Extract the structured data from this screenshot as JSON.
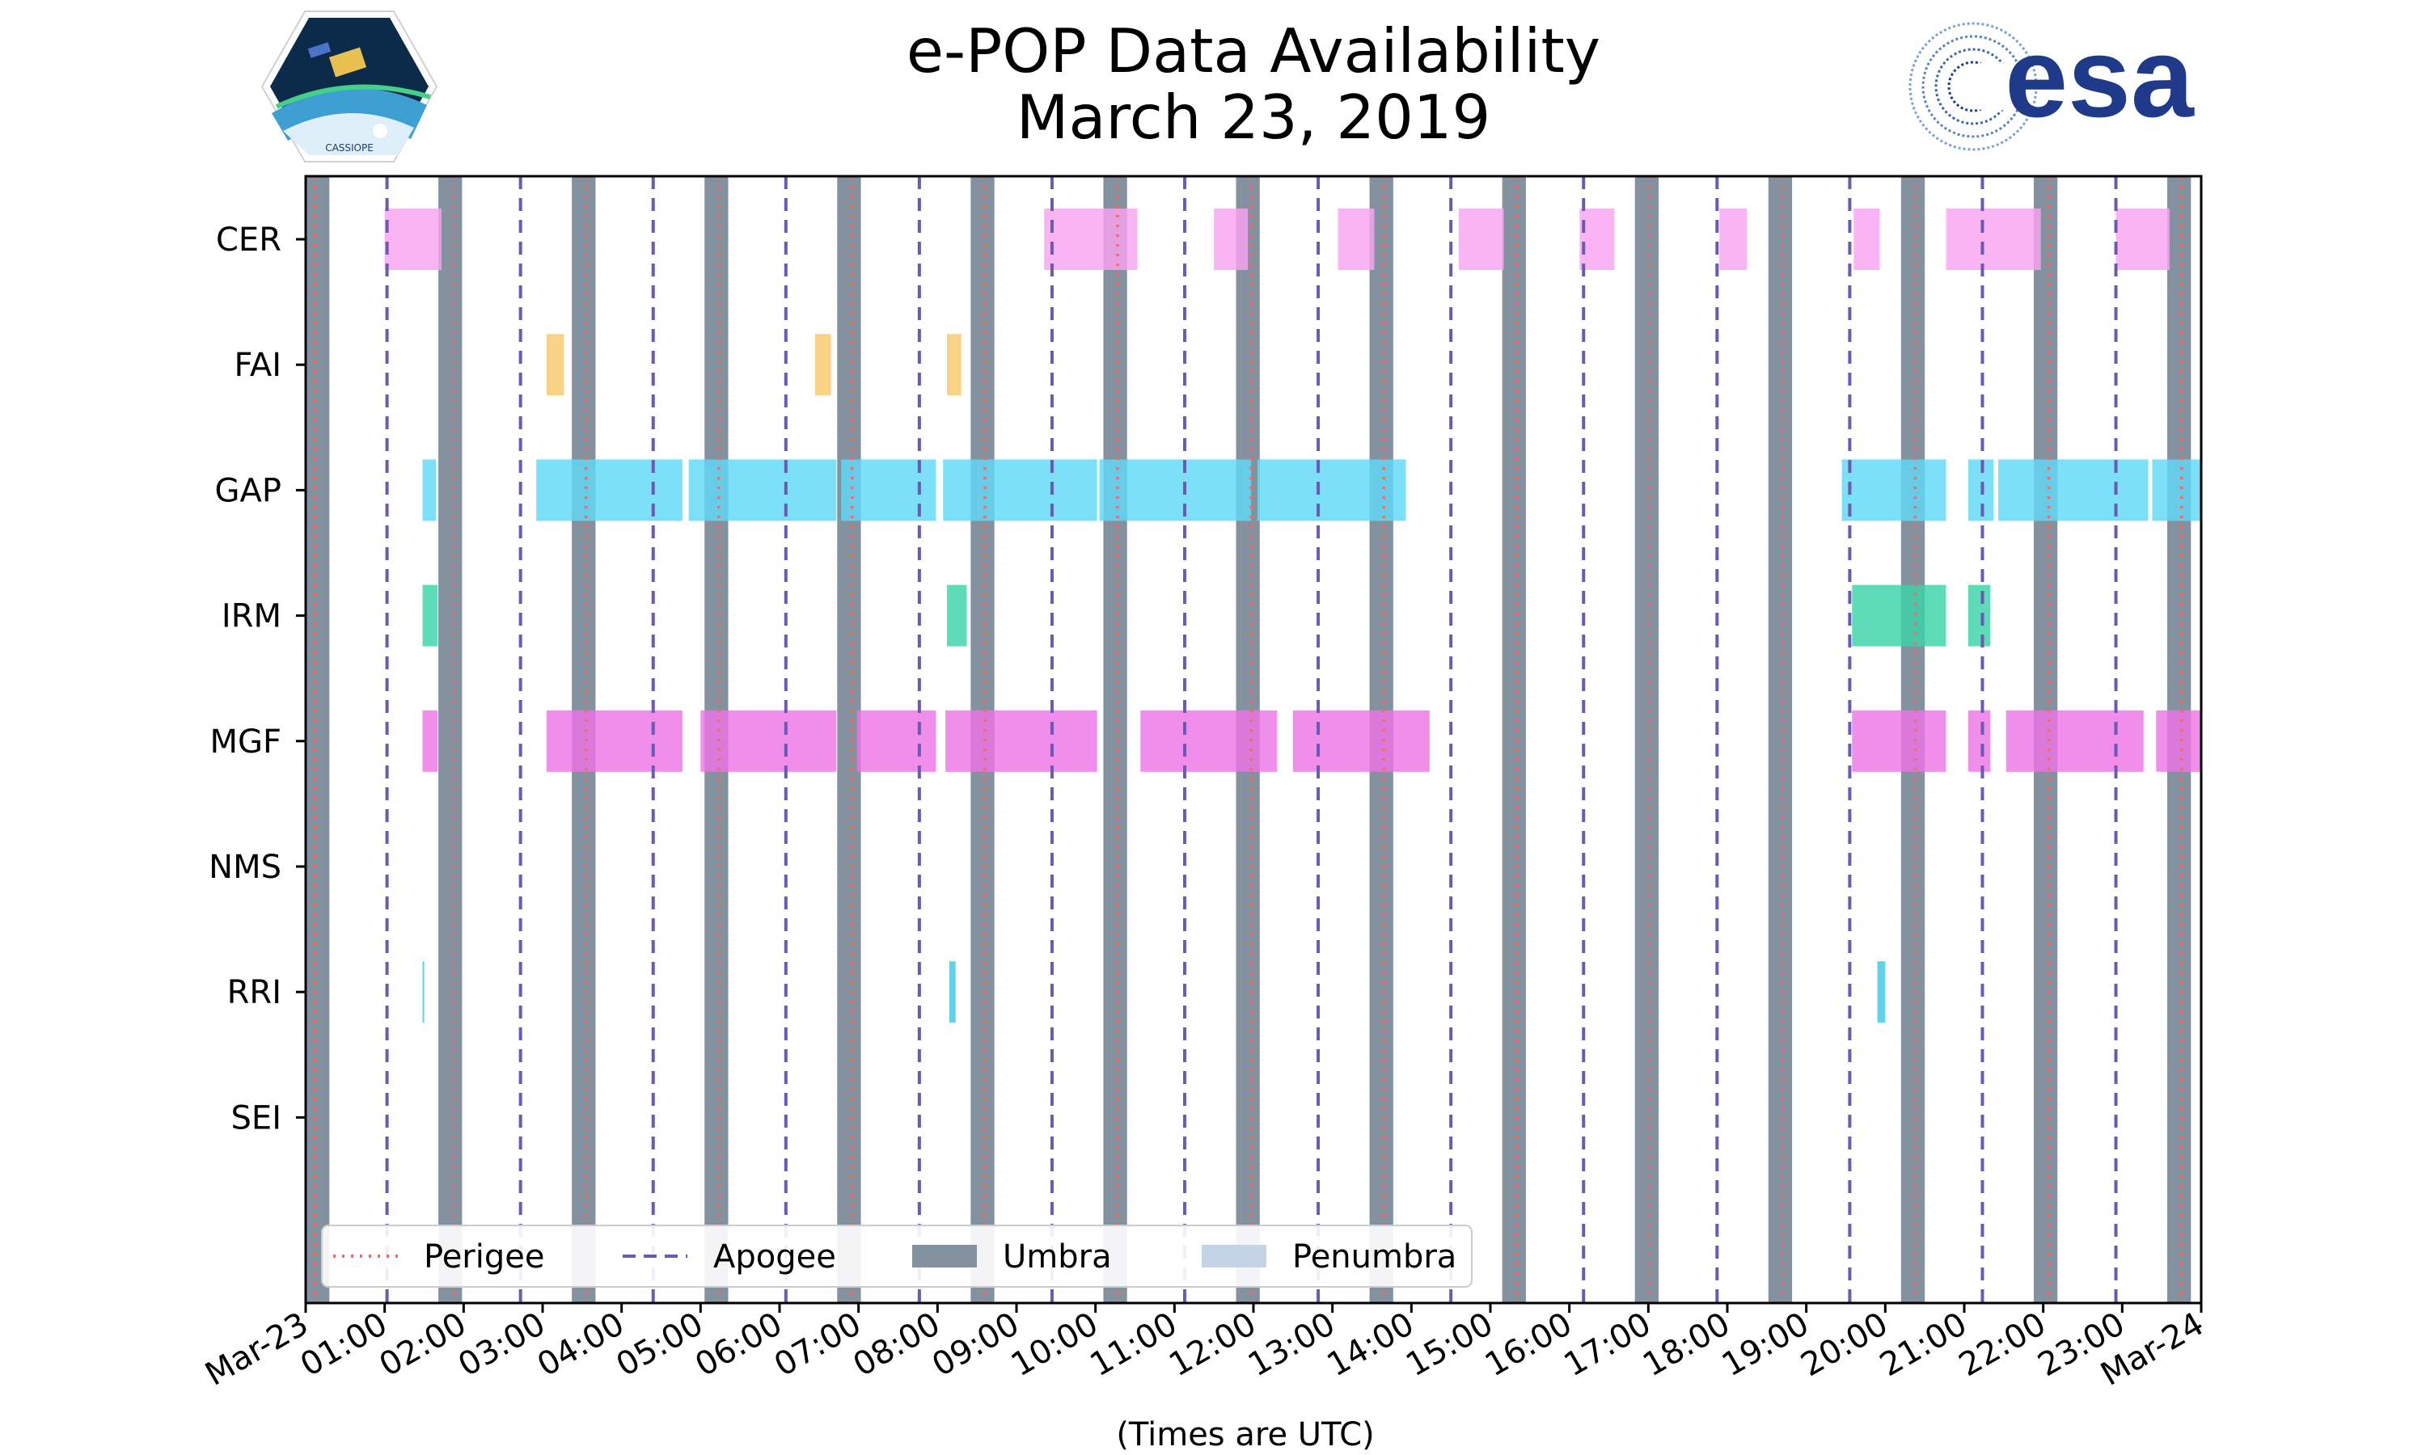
{
  "header": {
    "title_line1": "e-POP Data Availability",
    "title_line2": "March 23, 2019",
    "left_logo_text": "CASSIOPE",
    "right_logo_text": "esa"
  },
  "colors": {
    "CER": "#f9a3f0",
    "FAI": "#f8c96a",
    "GAP": "#5fd9f7",
    "IRM": "#3ad4a8",
    "MGF": "#ee74e6",
    "RRI": "#40c8e6",
    "perigee": "#f06a6a",
    "apogee": "#6a5ab4",
    "umbra": "#8492a0",
    "penumbra": "#c4d3e6"
  },
  "chart_data": {
    "type": "timeline",
    "xlabel": "(Times are UTC)",
    "xlim": [
      0,
      24
    ],
    "x_ticks": [
      "Mar-23",
      "01:00",
      "02:00",
      "03:00",
      "04:00",
      "05:00",
      "06:00",
      "07:00",
      "08:00",
      "09:00",
      "10:00",
      "11:00",
      "12:00",
      "13:00",
      "14:00",
      "15:00",
      "16:00",
      "17:00",
      "18:00",
      "19:00",
      "20:00",
      "21:00",
      "22:00",
      "23:00",
      "Mar-24"
    ],
    "instruments": [
      "CER",
      "FAI",
      "GAP",
      "IRM",
      "MGF",
      "NMS",
      "RRI",
      "SEI"
    ],
    "perigee_hours": [
      0.12,
      1.87,
      3.55,
      5.23,
      6.92,
      8.6,
      10.28,
      11.97,
      13.65,
      15.33,
      17.02,
      18.7,
      20.38,
      22.07,
      23.75
    ],
    "apogee_hours": [
      1.03,
      2.72,
      4.4,
      6.08,
      7.77,
      9.45,
      11.13,
      12.82,
      14.5,
      16.18,
      17.87,
      19.55,
      21.23,
      22.92
    ],
    "umbra_intervals": [
      [
        0.0,
        0.3
      ],
      [
        1.68,
        1.98
      ],
      [
        3.37,
        3.67
      ],
      [
        5.05,
        5.35
      ],
      [
        6.73,
        7.03
      ],
      [
        8.42,
        8.72
      ],
      [
        10.1,
        10.4
      ],
      [
        11.78,
        12.08
      ],
      [
        13.47,
        13.77
      ],
      [
        15.15,
        15.45
      ],
      [
        16.83,
        17.13
      ],
      [
        18.52,
        18.82
      ],
      [
        20.2,
        20.5
      ],
      [
        21.88,
        22.18
      ],
      [
        23.57,
        23.87
      ]
    ],
    "availability": {
      "CER": [
        [
          1.0,
          1.72
        ],
        [
          9.35,
          10.53
        ],
        [
          11.5,
          11.93
        ],
        [
          13.07,
          13.53
        ],
        [
          14.6,
          15.17
        ],
        [
          16.13,
          16.57
        ],
        [
          17.9,
          18.25
        ],
        [
          19.6,
          19.93
        ],
        [
          20.77,
          21.97
        ],
        [
          22.92,
          23.6
        ]
      ],
      "FAI": [
        [
          3.05,
          3.27
        ],
        [
          6.45,
          6.65
        ],
        [
          8.12,
          8.3
        ]
      ],
      "GAP": [
        [
          1.48,
          1.65
        ],
        [
          2.92,
          4.77
        ],
        [
          4.85,
          6.72
        ],
        [
          6.78,
          7.98
        ],
        [
          8.07,
          10.02
        ],
        [
          10.05,
          11.97
        ],
        [
          12.05,
          13.93
        ],
        [
          19.45,
          20.77
        ],
        [
          21.05,
          21.37
        ],
        [
          21.43,
          23.33
        ],
        [
          23.38,
          24.0
        ]
      ],
      "IRM": [
        [
          1.48,
          1.67
        ],
        [
          8.12,
          8.37
        ],
        [
          19.58,
          20.77
        ],
        [
          21.05,
          21.33
        ]
      ],
      "MGF": [
        [
          1.48,
          1.67
        ],
        [
          3.05,
          4.77
        ],
        [
          5.0,
          6.72
        ],
        [
          6.98,
          7.98
        ],
        [
          8.1,
          10.02
        ],
        [
          10.57,
          12.3
        ],
        [
          12.5,
          14.23
        ],
        [
          19.58,
          20.77
        ],
        [
          21.05,
          21.33
        ],
        [
          21.53,
          23.27
        ],
        [
          23.43,
          24.0
        ]
      ],
      "NMS": [],
      "RRI": [
        [
          1.48,
          1.5
        ],
        [
          8.15,
          8.23
        ],
        [
          19.9,
          20.0
        ]
      ],
      "SEI": []
    },
    "legend": {
      "placement": "lower-left",
      "items": [
        {
          "label": "Perigee",
          "style": "dotted"
        },
        {
          "label": "Apogee",
          "style": "dashed"
        },
        {
          "label": "Umbra",
          "style": "patch"
        },
        {
          "label": "Penumbra",
          "style": "patch"
        }
      ]
    }
  }
}
